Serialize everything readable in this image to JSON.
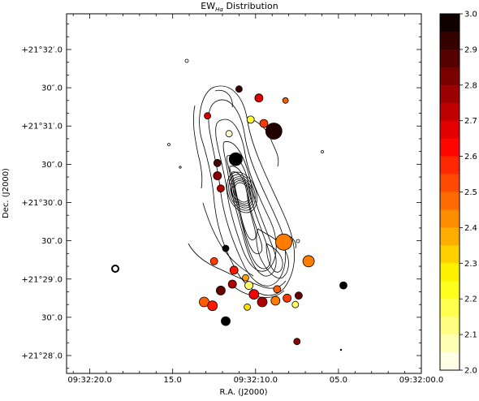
{
  "chart_data": {
    "type": "scatter",
    "title": {
      "base": "EW",
      "subscript": "Hα",
      "suffix": " Distribution"
    },
    "xlabel": "R.A. (J2000)",
    "ylabel": "Dec. (J2000)",
    "x_ticks": [
      "09:32:20.0",
      "15.0",
      "09:32:10.0",
      "05.0",
      "09:32:00.0"
    ],
    "x_tick_seconds": [
      20,
      15,
      10,
      5,
      0
    ],
    "y_ticks": [
      "+21°32′.0",
      "30″.0",
      "+21°31′.0",
      "30″.0",
      "+21°30′.0",
      "30″.0",
      "+21°29′.0",
      "30″.0",
      "+21°28′.0"
    ],
    "y_tick_arcsec": [
      240,
      210,
      180,
      150,
      120,
      90,
      60,
      30,
      0
    ],
    "xlim_seconds": [
      21.4,
      0.0
    ],
    "ylim_arcsec": [
      -14,
      268
    ],
    "colorbar": {
      "vmin": 2.0,
      "vmax": 3.0,
      "steps": 20,
      "colormap": "hot_r",
      "ticks": [
        "3.0",
        "2.9",
        "2.8",
        "2.7",
        "2.6",
        "2.5",
        "2.4",
        "2.3",
        "2.2",
        "2.1",
        "2.0"
      ],
      "tick_values": [
        3.0,
        2.9,
        2.8,
        2.7,
        2.6,
        2.5,
        2.4,
        2.3,
        2.2,
        2.1,
        2.0
      ]
    },
    "points": [
      {
        "ra_s": 11.0,
        "dec_as": 209,
        "v": 2.92,
        "r": 4
      },
      {
        "ra_s": 9.8,
        "dec_as": 202,
        "v": 2.68,
        "r": 5
      },
      {
        "ra_s": 8.2,
        "dec_as": 200,
        "v": 2.5,
        "r": 3.5
      },
      {
        "ra_s": 10.3,
        "dec_as": 185,
        "v": 2.2,
        "r": 4.5
      },
      {
        "ra_s": 9.5,
        "dec_as": 182,
        "v": 2.55,
        "r": 5
      },
      {
        "ra_s": 8.9,
        "dec_as": 176,
        "v": 2.95,
        "r": 10
      },
      {
        "ra_s": 12.9,
        "dec_as": 188,
        "v": 2.7,
        "r": 4
      },
      {
        "ra_s": 11.6,
        "dec_as": 174,
        "v": 2.05,
        "r": 4
      },
      {
        "ra_s": 11.2,
        "dec_as": 154,
        "v": 3.0,
        "r": 8
      },
      {
        "ra_s": 12.3,
        "dec_as": 151,
        "v": 2.9,
        "r": 4.5
      },
      {
        "ra_s": 12.3,
        "dec_as": 141,
        "v": 2.8,
        "r": 5
      },
      {
        "ra_s": 12.1,
        "dec_as": 131,
        "v": 2.75,
        "r": 4.5
      },
      {
        "ra_s": 8.3,
        "dec_as": 89,
        "v": 2.45,
        "r": 10
      },
      {
        "ra_s": 11.8,
        "dec_as": 84,
        "v": 3.0,
        "r": 4
      },
      {
        "ra_s": 12.5,
        "dec_as": 74,
        "v": 2.55,
        "r": 4.5
      },
      {
        "ra_s": 11.3,
        "dec_as": 67,
        "v": 2.6,
        "r": 5
      },
      {
        "ra_s": 6.8,
        "dec_as": 74,
        "v": 2.45,
        "r": 7
      },
      {
        "ra_s": 10.6,
        "dec_as": 61,
        "v": 2.4,
        "r": 4
      },
      {
        "ra_s": 11.4,
        "dec_as": 56,
        "v": 2.75,
        "r": 5
      },
      {
        "ra_s": 12.1,
        "dec_as": 51,
        "v": 2.85,
        "r": 5.5
      },
      {
        "ra_s": 10.4,
        "dec_as": 55,
        "v": 2.15,
        "r": 5
      },
      {
        "ra_s": 10.1,
        "dec_as": 48,
        "v": 2.65,
        "r": 6
      },
      {
        "ra_s": 8.7,
        "dec_as": 52,
        "v": 2.5,
        "r": 4.5
      },
      {
        "ra_s": 4.7,
        "dec_as": 55,
        "v": 3.0,
        "r": 4.5
      },
      {
        "ra_s": 13.1,
        "dec_as": 42,
        "v": 2.5,
        "r": 6
      },
      {
        "ra_s": 12.6,
        "dec_as": 39,
        "v": 2.6,
        "r": 6
      },
      {
        "ra_s": 10.5,
        "dec_as": 38,
        "v": 2.3,
        "r": 4
      },
      {
        "ra_s": 9.6,
        "dec_as": 42,
        "v": 2.75,
        "r": 6
      },
      {
        "ra_s": 8.8,
        "dec_as": 43,
        "v": 2.45,
        "r": 5.5
      },
      {
        "ra_s": 8.1,
        "dec_as": 45,
        "v": 2.55,
        "r": 5
      },
      {
        "ra_s": 7.4,
        "dec_as": 47,
        "v": 2.85,
        "r": 4.5
      },
      {
        "ra_s": 7.6,
        "dec_as": 40,
        "v": 2.15,
        "r": 4
      },
      {
        "ra_s": 11.8,
        "dec_as": 27,
        "v": 3.0,
        "r": 5.5
      },
      {
        "ra_s": 7.5,
        "dec_as": 11,
        "v": 2.8,
        "r": 4
      }
    ]
  }
}
